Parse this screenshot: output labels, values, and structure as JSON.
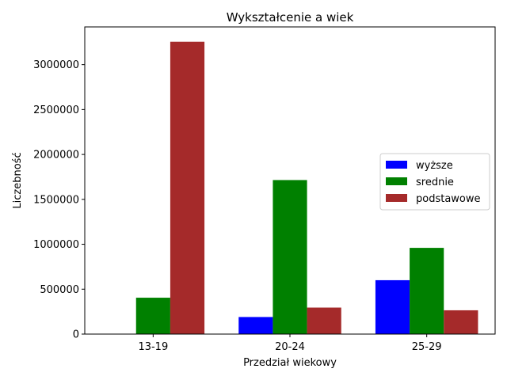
{
  "chart_data": {
    "type": "bar",
    "title": "Wykształcenie a wiek",
    "xlabel": "Przedział wiekowy",
    "ylabel": "Liczebność",
    "categories": [
      "13-19",
      "20-24",
      "25-29"
    ],
    "series": [
      {
        "name": "wyższe",
        "color": "#0000ff",
        "values": [
          0,
          190000,
          600000
        ]
      },
      {
        "name": "srednie",
        "color": "#008000",
        "values": [
          405000,
          1715000,
          960000
        ]
      },
      {
        "name": "podstawowe",
        "color": "#a52a2a",
        "values": [
          3255000,
          295000,
          265000
        ]
      }
    ],
    "ylim": [
      0,
      3420000
    ],
    "yticks": [
      0,
      500000,
      1000000,
      1500000,
      2000000,
      2500000,
      3000000
    ],
    "ytick_labels": [
      "0",
      "500000",
      "1000000",
      "1500000",
      "2000000",
      "2500000",
      "3000000"
    ],
    "grid": false,
    "legend": "center-right"
  }
}
